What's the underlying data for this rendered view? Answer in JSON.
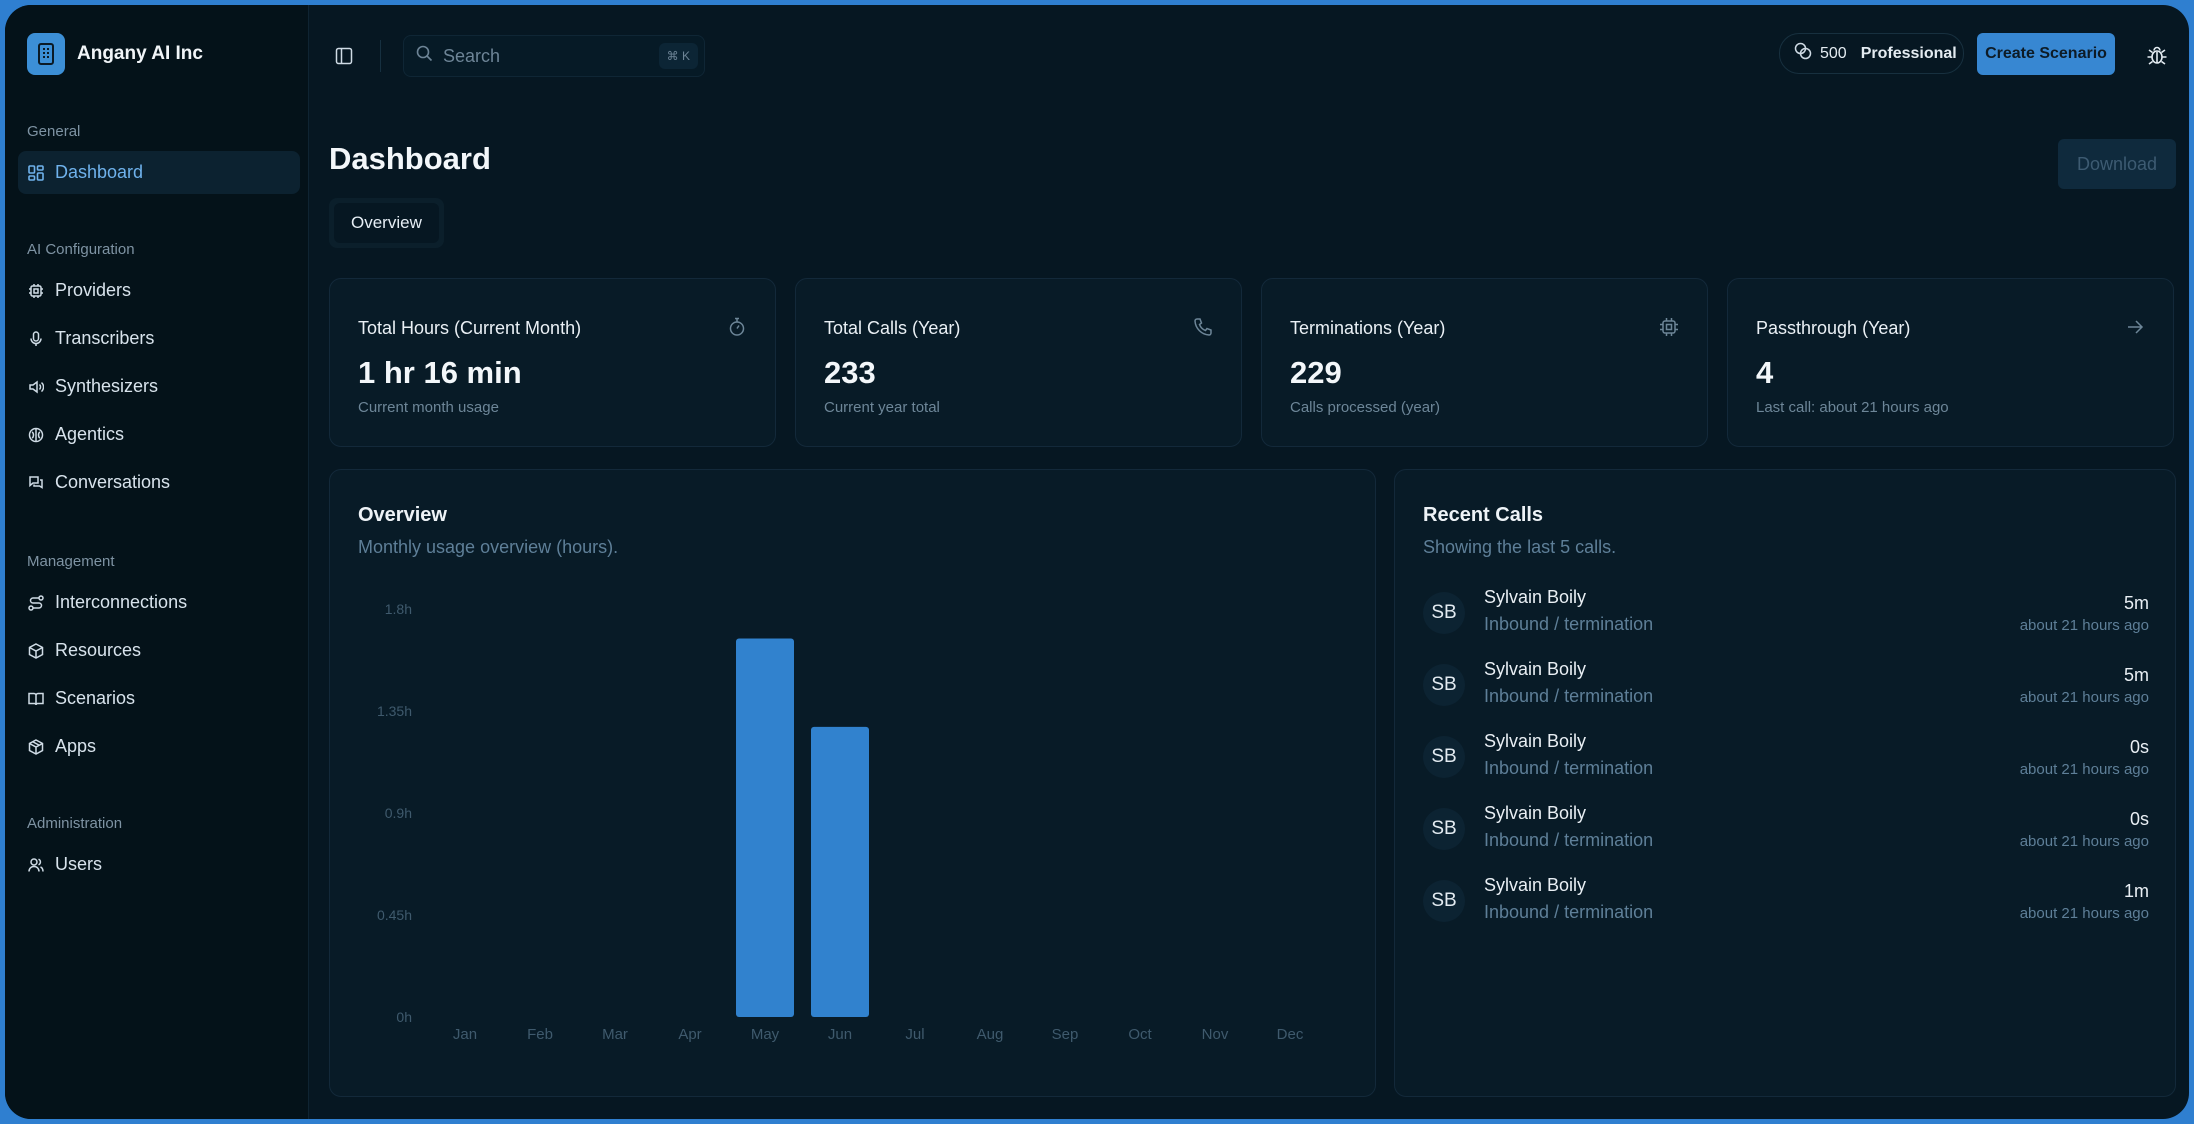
{
  "org": {
    "name": "Angany AI Inc"
  },
  "sidebar": {
    "sections": [
      {
        "title": "General",
        "items": [
          {
            "label": "Dashboard",
            "icon": "dashboard-icon",
            "active": true
          }
        ]
      },
      {
        "title": "AI Configuration",
        "items": [
          {
            "label": "Providers",
            "icon": "chip-icon"
          },
          {
            "label": "Transcribers",
            "icon": "microphone-icon"
          },
          {
            "label": "Synthesizers",
            "icon": "speaker-icon"
          },
          {
            "label": "Agentics",
            "icon": "brain-icon"
          },
          {
            "label": "Conversations",
            "icon": "chat-icon"
          }
        ]
      },
      {
        "title": "Management",
        "items": [
          {
            "label": "Interconnections",
            "icon": "route-icon"
          },
          {
            "label": "Resources",
            "icon": "box-icon"
          },
          {
            "label": "Scenarios",
            "icon": "book-icon"
          },
          {
            "label": "Apps",
            "icon": "cube-icon"
          }
        ]
      },
      {
        "title": "Administration",
        "items": [
          {
            "label": "Users",
            "icon": "users-icon"
          }
        ]
      }
    ]
  },
  "header": {
    "search_placeholder": "Search",
    "search_shortcut": "⌘ K",
    "credits": "500",
    "plan": "Professional",
    "create_label": "Create Scenario"
  },
  "page": {
    "title": "Dashboard",
    "download_label": "Download",
    "tabs": [
      {
        "label": "Overview"
      }
    ]
  },
  "stats": [
    {
      "title": "Total Hours (Current Month)",
      "value": "1 hr 16 min",
      "sub": "Current month usage",
      "icon": "stopwatch-icon"
    },
    {
      "title": "Total Calls (Year)",
      "value": "233",
      "sub": "Current year total",
      "icon": "phone-icon"
    },
    {
      "title": "Terminations (Year)",
      "value": "229",
      "sub": "Calls processed (year)",
      "icon": "chip-icon"
    },
    {
      "title": "Passthrough (Year)",
      "value": "4",
      "sub": "Last call: about 21 hours ago",
      "icon": "arrow-right-icon"
    }
  ],
  "overview": {
    "title": "Overview",
    "subtitle": "Monthly usage overview (hours)."
  },
  "chart_data": {
    "type": "bar",
    "categories": [
      "Jan",
      "Feb",
      "Mar",
      "Apr",
      "May",
      "Jun",
      "Jul",
      "Aug",
      "Sep",
      "Oct",
      "Nov",
      "Dec"
    ],
    "values": [
      0,
      0,
      0,
      0,
      1.67,
      1.28,
      0,
      0,
      0,
      0,
      0,
      0
    ],
    "yticks": [
      "0h",
      "0.45h",
      "0.9h",
      "1.35h",
      "1.8h"
    ],
    "ylim": [
      0,
      1.8
    ],
    "bar_color": "#3182ce"
  },
  "recent": {
    "title": "Recent Calls",
    "subtitle": "Showing the last 5 calls.",
    "calls": [
      {
        "initials": "SB",
        "name": "Sylvain Boily",
        "desc": "Inbound / termination",
        "duration": "5m",
        "when": "about 21 hours ago"
      },
      {
        "initials": "SB",
        "name": "Sylvain Boily",
        "desc": "Inbound / termination",
        "duration": "5m",
        "when": "about 21 hours ago"
      },
      {
        "initials": "SB",
        "name": "Sylvain Boily",
        "desc": "Inbound / termination",
        "duration": "0s",
        "when": "about 21 hours ago"
      },
      {
        "initials": "SB",
        "name": "Sylvain Boily",
        "desc": "Inbound / termination",
        "duration": "0s",
        "when": "about 21 hours ago"
      },
      {
        "initials": "SB",
        "name": "Sylvain Boily",
        "desc": "Inbound / termination",
        "duration": "1m",
        "when": "about 21 hours ago"
      }
    ]
  }
}
